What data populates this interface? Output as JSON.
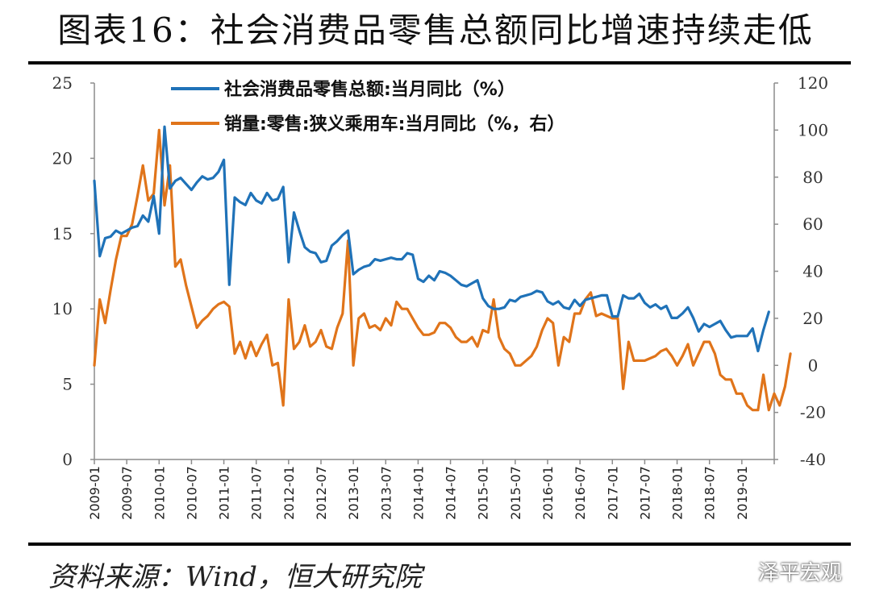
{
  "title": "图表16：社会消费品零售总额同比增速持续走低",
  "source": "资料来源：Wind，恒大研究院",
  "watermark": "泽平宏观",
  "chart_data": {
    "type": "line",
    "legend_position": "top-left",
    "grid": false,
    "x_labels": [
      "2009-01",
      "2009-07",
      "2010-01",
      "2010-07",
      "2011-01",
      "2011-07",
      "2012-01",
      "2012-07",
      "2013-01",
      "2013-07",
      "2014-01",
      "2014-07",
      "2015-01",
      "2015-07",
      "2016-01",
      "2016-07",
      "2017-01",
      "2017-07",
      "2018-01",
      "2018-07",
      "2019-01"
    ],
    "y_left": {
      "ticks": [
        "0",
        "5",
        "10",
        "15",
        "20",
        "25"
      ],
      "range": [
        0,
        25
      ]
    },
    "y_right": {
      "ticks": [
        "-40",
        "-20",
        "0",
        "20",
        "40",
        "60",
        "80",
        "100",
        "120"
      ],
      "range": [
        -40,
        120
      ]
    },
    "series": [
      {
        "name": "社会消费品零售总额:当月同比（%）",
        "axis": "left",
        "color": "#1f72b8",
        "values": [
          18.5,
          13.5,
          14.7,
          14.8,
          15.2,
          15.0,
          15.2,
          15.4,
          15.5,
          16.2,
          15.8,
          17.5,
          15.0,
          22.1,
          18.0,
          18.5,
          18.7,
          18.3,
          17.9,
          18.4,
          18.8,
          18.6,
          18.7,
          19.1,
          19.9,
          11.6,
          17.4,
          17.1,
          16.9,
          17.7,
          17.2,
          17.0,
          17.7,
          17.2,
          17.3,
          18.1,
          13.1,
          16.4,
          15.2,
          14.1,
          13.8,
          13.7,
          13.1,
          13.2,
          14.2,
          14.5,
          14.9,
          15.2,
          12.3,
          12.6,
          12.8,
          12.9,
          13.3,
          13.2,
          13.3,
          13.4,
          13.3,
          13.3,
          13.7,
          13.6,
          12.0,
          11.8,
          12.2,
          11.9,
          12.5,
          12.4,
          12.2,
          11.9,
          11.6,
          11.5,
          11.7,
          11.9,
          10.7,
          10.2,
          10.0,
          10.0,
          10.1,
          10.6,
          10.5,
          10.8,
          10.9,
          11.0,
          11.2,
          11.1,
          10.5,
          10.3,
          10.5,
          10.1,
          10.0,
          10.6,
          10.2,
          10.6,
          10.7,
          10.8,
          10.9,
          10.9,
          9.5,
          9.5,
          10.9,
          10.7,
          10.7,
          11.0,
          10.4,
          10.1,
          10.3,
          10.0,
          10.2,
          9.4,
          9.4,
          9.7,
          10.1,
          9.4,
          8.5,
          9.0,
          8.8,
          9.0,
          9.2,
          8.6,
          8.1,
          8.2,
          8.2,
          8.2,
          8.7,
          7.2,
          8.6,
          9.8
        ]
      },
      {
        "name": "销量:零售:狭义乘用车:当月同比（%，右）",
        "axis": "right",
        "color": "#e0741a",
        "values": [
          0,
          28,
          18,
          32,
          45,
          55,
          55,
          60,
          72,
          85,
          70,
          73,
          100,
          68,
          85,
          42,
          45,
          34,
          25,
          16,
          19,
          21,
          24,
          26,
          27,
          25,
          5,
          10,
          3,
          10,
          4,
          9,
          13,
          0,
          1,
          -17,
          28,
          7,
          10,
          17,
          8,
          10,
          15,
          8,
          7,
          16,
          22,
          53,
          0,
          20,
          22,
          16,
          17,
          15,
          20,
          17,
          27,
          24,
          24,
          20,
          16,
          13,
          13,
          14,
          18,
          18,
          16,
          12,
          10,
          10,
          12,
          8,
          15,
          14,
          28,
          12,
          7,
          5,
          0,
          0,
          2,
          4,
          8,
          15,
          20,
          18,
          0,
          12,
          10,
          22,
          22,
          28,
          31,
          21,
          22,
          21,
          20,
          20,
          -10,
          10,
          2,
          2,
          2,
          3,
          4,
          6,
          7,
          4,
          0,
          4,
          9,
          0,
          5,
          10,
          10,
          5,
          -4,
          -6,
          -6,
          -12,
          -12,
          -17,
          -19,
          -19,
          -4,
          -19,
          -12,
          -17,
          -9,
          5
        ]
      }
    ]
  }
}
